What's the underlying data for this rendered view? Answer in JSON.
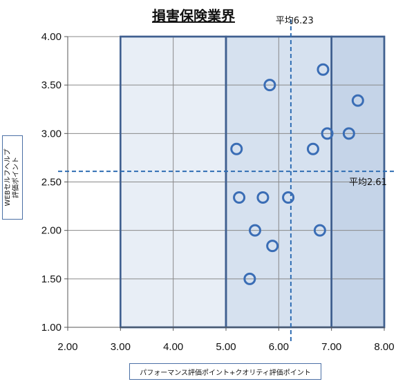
{
  "chart_data": {
    "type": "scatter",
    "title": "損害保険業界",
    "xlabel": "パフォーマンス評価ポイント+クオリティ評価ポイント",
    "ylabel": "WEBセルフヘルプ\n評価ポイント",
    "xlim": [
      2.0,
      8.0
    ],
    "ylim": [
      1.0,
      4.0
    ],
    "x_ticks": [
      "2.00",
      "3.00",
      "4.00",
      "5.00",
      "6.00",
      "7.00",
      "8.00"
    ],
    "y_ticks": [
      "1.00",
      "1.50",
      "2.00",
      "2.50",
      "3.00",
      "3.50",
      "4.00"
    ],
    "grid": true,
    "series": [
      {
        "points": [
          {
            "x": 5.83,
            "y": 3.5
          },
          {
            "x": 6.84,
            "y": 3.66
          },
          {
            "x": 7.5,
            "y": 3.34
          },
          {
            "x": 6.92,
            "y": 3.0
          },
          {
            "x": 7.33,
            "y": 3.0
          },
          {
            "x": 5.2,
            "y": 2.84
          },
          {
            "x": 6.65,
            "y": 2.84
          },
          {
            "x": 5.25,
            "y": 2.34
          },
          {
            "x": 5.7,
            "y": 2.34
          },
          {
            "x": 6.18,
            "y": 2.34
          },
          {
            "x": 5.55,
            "y": 2.0
          },
          {
            "x": 6.78,
            "y": 2.0
          },
          {
            "x": 5.88,
            "y": 1.84
          },
          {
            "x": 5.45,
            "y": 1.5
          }
        ]
      }
    ],
    "average_lines": [
      {
        "axis": "x",
        "value": 6.23,
        "label": "平均6.23"
      },
      {
        "axis": "y",
        "value": 2.61,
        "label": "平均2.61"
      }
    ],
    "regions": [
      {
        "x_from": 3.0,
        "x_to": 5.0,
        "fill": "#e8eef6"
      },
      {
        "x_from": 5.0,
        "x_to": 7.0,
        "fill": "#d6e1ef"
      },
      {
        "x_from": 7.0,
        "x_to": 8.0,
        "fill": "#c5d4e8"
      }
    ],
    "colors": {
      "marker": "#3a6db5",
      "average_line": "#2f6db3",
      "region_border": "#3f5f8f",
      "grid": "#888888"
    }
  }
}
